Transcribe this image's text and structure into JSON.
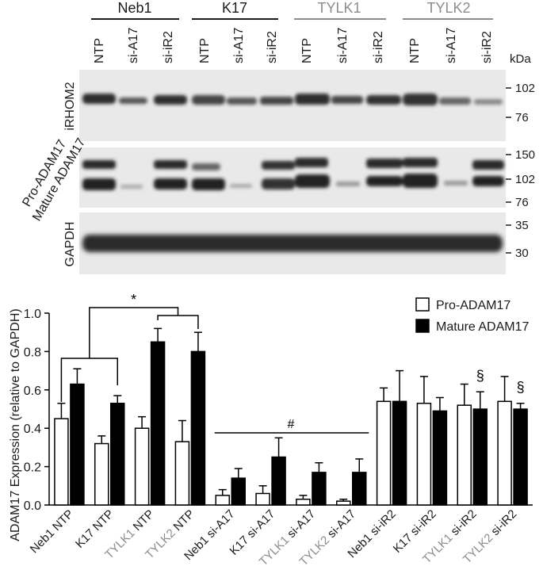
{
  "blot": {
    "groups": [
      {
        "name": "Neb1",
        "color": "#1a1a1a"
      },
      {
        "name": "K17",
        "color": "#1a1a1a"
      },
      {
        "name": "TYLK1",
        "color": "#8c8c8c"
      },
      {
        "name": "TYLK2",
        "color": "#8c8c8c"
      }
    ],
    "lane_labels": [
      "NTP",
      "si-A17",
      "si-iR2",
      "NTP",
      "si-A17",
      "si-iR2",
      "NTP",
      "si-A17",
      "si-iR2",
      "NTP",
      "si-A17",
      "si-iR2"
    ],
    "kda_label": "kDa",
    "panels": [
      {
        "label": "iRHOM2",
        "markers": [
          "102",
          "76"
        ]
      },
      {
        "label": "Pro-ADAM17\nMature ADAM17",
        "markers": [
          "150",
          "102",
          "76"
        ]
      },
      {
        "label": "GAPDH",
        "markers": [
          "35",
          "30"
        ]
      }
    ]
  },
  "chart_data": {
    "type": "bar",
    "ylabel": "ADAM17 Expression (relative to GAPDH)",
    "ylim": [
      0,
      1.0
    ],
    "yticks": [
      "0.0",
      "0.2",
      "0.4",
      "0.6",
      "0.8",
      "1.0"
    ],
    "categories": [
      {
        "prefix": "Neb1",
        "suffix": "NTP",
        "prefix_color": "#1a1a1a"
      },
      {
        "prefix": "K17",
        "suffix": "NTP",
        "prefix_color": "#1a1a1a"
      },
      {
        "prefix": "TYLK1",
        "suffix": "NTP",
        "prefix_color": "#8c8c8c"
      },
      {
        "prefix": "TYLK2",
        "suffix": "NTP",
        "prefix_color": "#8c8c8c"
      },
      {
        "prefix": "Neb1",
        "suffix": "si-A17",
        "prefix_color": "#1a1a1a"
      },
      {
        "prefix": "K17",
        "suffix": "si-A17",
        "prefix_color": "#1a1a1a"
      },
      {
        "prefix": "TYLK1",
        "suffix": "si-A17",
        "prefix_color": "#8c8c8c"
      },
      {
        "prefix": "TYLK2",
        "suffix": "si-A17",
        "prefix_color": "#8c8c8c"
      },
      {
        "prefix": "Neb1",
        "suffix": "si-iR2",
        "prefix_color": "#1a1a1a"
      },
      {
        "prefix": "K17",
        "suffix": "si-iR2",
        "prefix_color": "#1a1a1a"
      },
      {
        "prefix": "TYLK1",
        "suffix": "si-iR2",
        "prefix_color": "#8c8c8c"
      },
      {
        "prefix": "TYLK2",
        "suffix": "si-iR2",
        "prefix_color": "#8c8c8c"
      }
    ],
    "series": [
      {
        "name": "Pro-ADAM17",
        "fill": "#ffffff",
        "values": [
          0.45,
          0.32,
          0.4,
          0.33,
          0.05,
          0.06,
          0.03,
          0.02,
          0.54,
          0.53,
          0.52,
          0.54
        ],
        "errors": [
          0.08,
          0.04,
          0.06,
          0.11,
          0.03,
          0.04,
          0.02,
          0.01,
          0.07,
          0.14,
          0.11,
          0.13
        ]
      },
      {
        "name": "Mature ADAM17",
        "fill": "#000000",
        "values": [
          0.63,
          0.53,
          0.85,
          0.8,
          0.14,
          0.25,
          0.17,
          0.17,
          0.54,
          0.49,
          0.5,
          0.5
        ],
        "errors": [
          0.08,
          0.04,
          0.07,
          0.1,
          0.05,
          0.1,
          0.05,
          0.07,
          0.16,
          0.07,
          0.09,
          0.03
        ]
      }
    ],
    "annotations": {
      "star": "*",
      "hash": "#",
      "section": "§"
    },
    "section_marked_categories": [
      10,
      11
    ],
    "legend_position": "top-right"
  }
}
